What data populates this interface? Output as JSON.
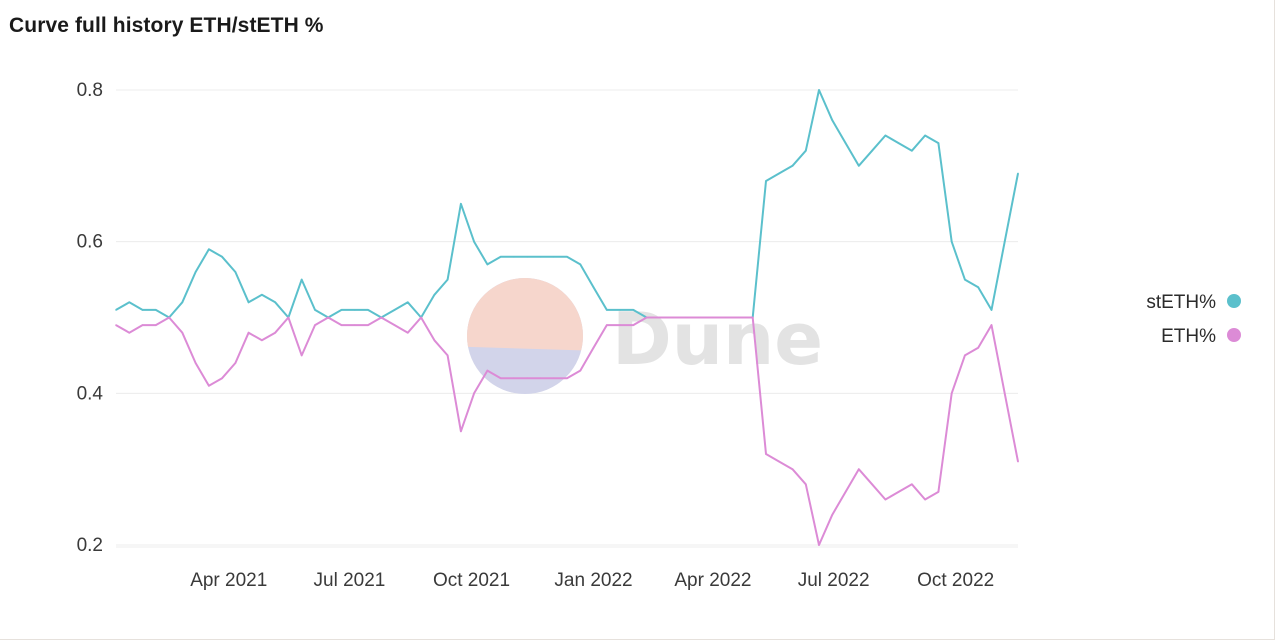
{
  "title": "Curve full history ETH/stETH %",
  "watermark": {
    "text": "Dune"
  },
  "colors": {
    "steth": "#5bc0cc",
    "eth": "#dc8bd6",
    "grid": "#ececec",
    "wm_top": "#f6d6cc",
    "wm_bottom": "#d2d4ea"
  },
  "chart_data": {
    "type": "line",
    "title": "Curve full history ETH/stETH %",
    "xlabel": "",
    "ylabel": "",
    "x_range": [
      "2021-01-06",
      "2022-11-17"
    ],
    "ylim": [
      0.2,
      0.82
    ],
    "x_ticks": [
      {
        "date": "2021-04-01",
        "label": "Apr 2021"
      },
      {
        "date": "2021-07-01",
        "label": "Jul 2021"
      },
      {
        "date": "2021-10-01",
        "label": "Oct 2021"
      },
      {
        "date": "2022-01-01",
        "label": "Jan 2022"
      },
      {
        "date": "2022-04-01",
        "label": "Apr 2022"
      },
      {
        "date": "2022-07-01",
        "label": "Jul 2022"
      },
      {
        "date": "2022-10-01",
        "label": "Oct 2022"
      }
    ],
    "y_ticks": [
      {
        "value": 0.2,
        "label": "0.2"
      },
      {
        "value": 0.4,
        "label": "0.4"
      },
      {
        "value": 0.6,
        "label": "0.6"
      },
      {
        "value": 0.8,
        "label": "0.8"
      }
    ],
    "grid": true,
    "legend": "right",
    "x": [
      "2021-01-06",
      "2021-01-16",
      "2021-01-26",
      "2021-02-05",
      "2021-02-15",
      "2021-02-25",
      "2021-03-07",
      "2021-03-17",
      "2021-03-27",
      "2021-04-06",
      "2021-04-16",
      "2021-04-26",
      "2021-05-06",
      "2021-05-16",
      "2021-05-26",
      "2021-06-05",
      "2021-06-15",
      "2021-06-25",
      "2021-07-05",
      "2021-07-15",
      "2021-07-25",
      "2021-08-04",
      "2021-08-14",
      "2021-08-24",
      "2021-09-03",
      "2021-09-13",
      "2021-09-23",
      "2021-10-03",
      "2021-10-13",
      "2021-10-23",
      "2021-11-02",
      "2021-11-12",
      "2021-11-22",
      "2021-12-02",
      "2021-12-12",
      "2021-12-22",
      "2022-01-01",
      "2022-01-11",
      "2022-01-21",
      "2022-01-31",
      "2022-02-10",
      "2022-02-20",
      "2022-03-02",
      "2022-03-12",
      "2022-03-22",
      "2022-04-01",
      "2022-04-11",
      "2022-04-21",
      "2022-05-01",
      "2022-05-11",
      "2022-05-21",
      "2022-05-31",
      "2022-06-10",
      "2022-06-20",
      "2022-06-30",
      "2022-07-10",
      "2022-07-20",
      "2022-07-30",
      "2022-08-09",
      "2022-08-19",
      "2022-08-29",
      "2022-09-08",
      "2022-09-18",
      "2022-09-28",
      "2022-10-08",
      "2022-10-18",
      "2022-10-28",
      "2022-11-07",
      "2022-11-17"
    ],
    "series": [
      {
        "name": "stETH%",
        "color": "#5bc0cc",
        "values": [
          0.51,
          0.52,
          0.51,
          0.51,
          0.5,
          0.52,
          0.56,
          0.59,
          0.58,
          0.56,
          0.52,
          0.53,
          0.52,
          0.5,
          0.55,
          0.51,
          0.5,
          0.51,
          0.51,
          0.51,
          0.5,
          0.51,
          0.52,
          0.5,
          0.53,
          0.55,
          0.65,
          0.6,
          0.57,
          0.58,
          0.58,
          0.58,
          0.58,
          0.58,
          0.58,
          0.57,
          0.54,
          0.51,
          0.51,
          0.51,
          0.5,
          0.5,
          0.5,
          0.5,
          0.5,
          0.5,
          0.5,
          0.5,
          0.5,
          0.68,
          0.69,
          0.7,
          0.72,
          0.8,
          0.76,
          0.73,
          0.7,
          0.72,
          0.74,
          0.73,
          0.72,
          0.74,
          0.73,
          0.6,
          0.55,
          0.54,
          0.51,
          0.6,
          0.69
        ]
      },
      {
        "name": "ETH%",
        "color": "#dc8bd6",
        "values": [
          0.49,
          0.48,
          0.49,
          0.49,
          0.5,
          0.48,
          0.44,
          0.41,
          0.42,
          0.44,
          0.48,
          0.47,
          0.48,
          0.5,
          0.45,
          0.49,
          0.5,
          0.49,
          0.49,
          0.49,
          0.5,
          0.49,
          0.48,
          0.5,
          0.47,
          0.45,
          0.35,
          0.4,
          0.43,
          0.42,
          0.42,
          0.42,
          0.42,
          0.42,
          0.42,
          0.43,
          0.46,
          0.49,
          0.49,
          0.49,
          0.5,
          0.5,
          0.5,
          0.5,
          0.5,
          0.5,
          0.5,
          0.5,
          0.5,
          0.32,
          0.31,
          0.3,
          0.28,
          0.2,
          0.24,
          0.27,
          0.3,
          0.28,
          0.26,
          0.27,
          0.28,
          0.26,
          0.27,
          0.4,
          0.45,
          0.46,
          0.49,
          0.4,
          0.31
        ]
      }
    ]
  }
}
